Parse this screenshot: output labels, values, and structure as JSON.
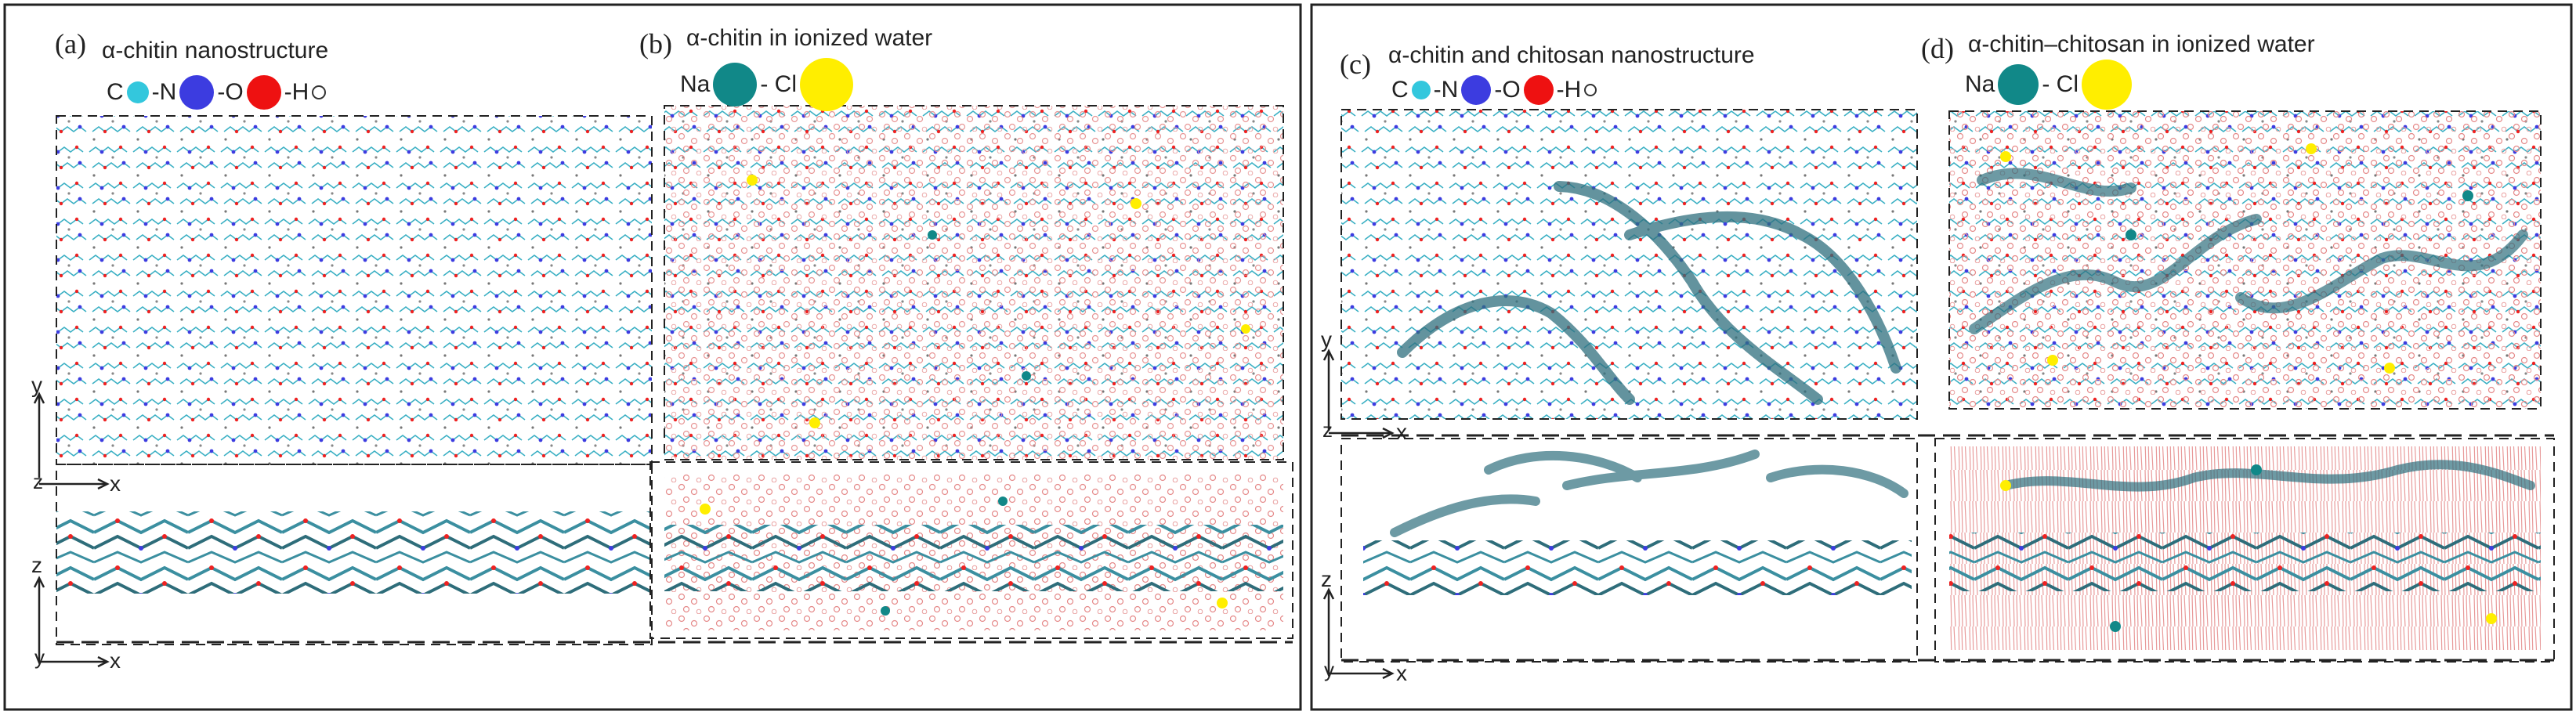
{
  "panels": [
    {
      "letter": "(a)",
      "title": "α-chitin nanostructure",
      "legend": [
        {
          "symbol": "C",
          "color": "#33c7dd"
        },
        {
          "symbol": "-N",
          "color": "#3c3ce0"
        },
        {
          "symbol": "-O",
          "color": "#ee1111"
        },
        {
          "symbol": "-H",
          "color": "#ffffff"
        }
      ]
    },
    {
      "letter": "(b)",
      "title": "α-chitin in ionized water",
      "legend": [
        {
          "symbol": "Na",
          "color": "#118888"
        },
        {
          "symbol": "- Cl",
          "color": "#ffee00"
        }
      ]
    },
    {
      "letter": "(c)",
      "title": "α-chitin and chitosan nanostructure",
      "legend": [
        {
          "symbol": "C",
          "color": "#33c7dd"
        },
        {
          "symbol": "-N",
          "color": "#3c3ce0"
        },
        {
          "symbol": "-O",
          "color": "#ee1111"
        },
        {
          "symbol": "-H",
          "color": "#ffffff"
        }
      ]
    },
    {
      "letter": "(d)",
      "title": "α-chitin–chitosan in ionized water",
      "legend": [
        {
          "symbol": "Na",
          "color": "#118888"
        },
        {
          "symbol": "- Cl",
          "color": "#ffee00"
        }
      ]
    }
  ],
  "axes": {
    "y": "y",
    "z": "z",
    "x": "x"
  }
}
